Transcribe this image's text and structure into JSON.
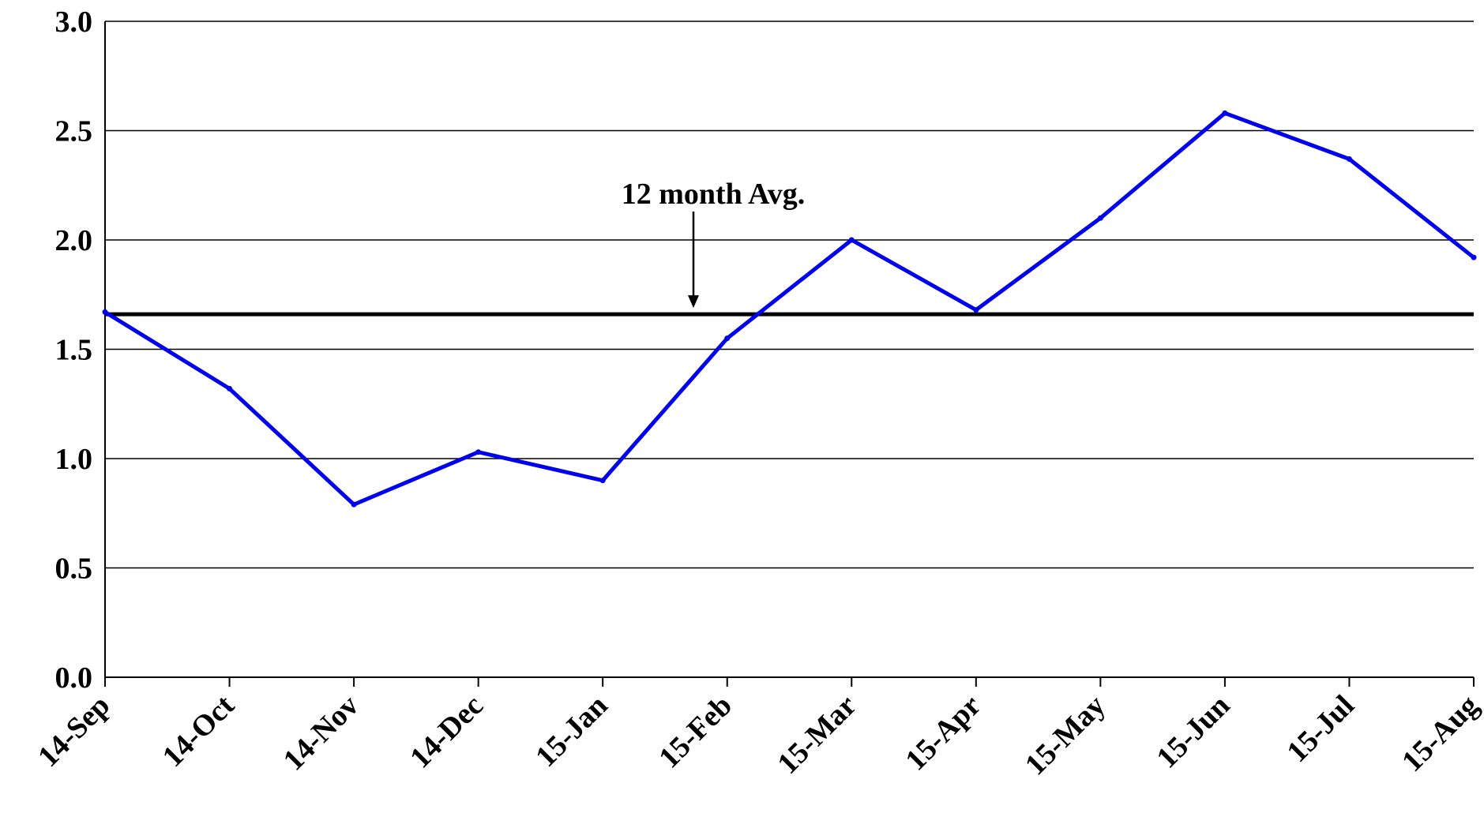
{
  "chart_data": {
    "type": "line",
    "title": "",
    "xlabel": "",
    "ylabel": "",
    "categories": [
      "14-Sep",
      "14-Oct",
      "14-Nov",
      "14-Dec",
      "15-Jan",
      "15-Feb",
      "15-Mar",
      "15-Apr",
      "15-May",
      "15-Jun",
      "15-Jul",
      "15-Aug"
    ],
    "series": [
      {
        "values": [
          1.67,
          1.32,
          0.79,
          1.03,
          0.9,
          1.55,
          2.0,
          1.68,
          2.1,
          2.58,
          2.37,
          1.92
        ],
        "color": "#0000ee"
      }
    ],
    "reference_line": {
      "label": "12 month Avg.",
      "value": 1.66,
      "color": "#000000"
    },
    "ylim": [
      0,
      3.0
    ],
    "yticks": [
      "0.0",
      "0.5",
      "1.0",
      "1.5",
      "2.0",
      "2.5",
      "3.0"
    ],
    "grid": true,
    "legend": "none"
  }
}
